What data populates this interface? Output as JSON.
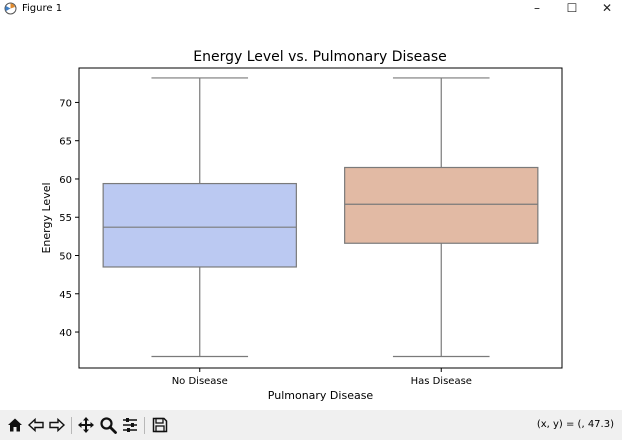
{
  "window": {
    "title": "Figure 1",
    "controls": [
      "–",
      "☐",
      "✕"
    ]
  },
  "toolbar": {
    "tools": [
      "home-icon",
      "back-icon",
      "forward-icon",
      "pan-icon",
      "zoom-icon",
      "configure-subplots-icon",
      "save-icon"
    ],
    "coords_text": "(x, y) = (, 47.3)"
  },
  "chart_data": {
    "type": "box",
    "title": "Energy Level vs. Pulmonary Disease",
    "xlabel": "Pulmonary Disease",
    "ylabel": "Energy Level",
    "categories": [
      "No Disease",
      "Has Disease"
    ],
    "ylim": [
      35.3,
      74.5
    ],
    "yticks": [
      40,
      45,
      50,
      55,
      60,
      65,
      70
    ],
    "boxes": [
      {
        "category": "No Disease",
        "whisker_low": 36.8,
        "q1": 48.5,
        "median": 53.7,
        "q3": 59.4,
        "whisker_high": 73.2,
        "color": "#bbc9f2"
      },
      {
        "category": "Has Disease",
        "whisker_low": 36.8,
        "q1": 51.6,
        "median": 56.7,
        "q3": 61.5,
        "whisker_high": 73.2,
        "color": "#e2baa4"
      }
    ],
    "grid": false,
    "line_color": "#7a7a7a"
  }
}
